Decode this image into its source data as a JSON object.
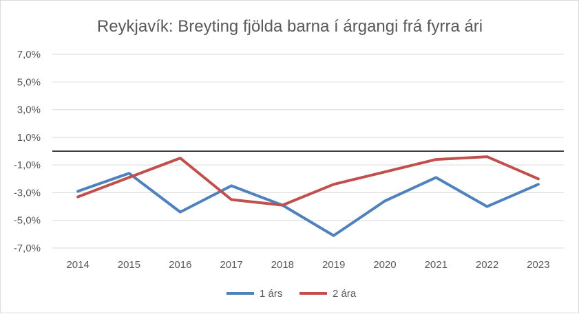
{
  "chart_data": {
    "type": "line",
    "title": "Reykjavík: Breyting fjölda barna í árgangi frá fyrra ári",
    "xlabel": "",
    "ylabel": "",
    "categories": [
      "2014",
      "2015",
      "2016",
      "2017",
      "2018",
      "2019",
      "2020",
      "2021",
      "2022",
      "2023"
    ],
    "y_ticks": [
      7.0,
      5.0,
      3.0,
      1.0,
      -1.0,
      -3.0,
      -5.0,
      -7.0
    ],
    "y_tick_labels": [
      "7,0%",
      "5,0%",
      "3,0%",
      "1,0%",
      "-1,0%",
      "-3,0%",
      "-5,0%",
      "-7,0%"
    ],
    "ylim": [
      -7.0,
      7.0
    ],
    "grid": true,
    "zero_line": true,
    "legend_position": "bottom",
    "series": [
      {
        "name": "1 árs",
        "color": "#4f81bd",
        "values": [
          -2.9,
          -1.6,
          -4.4,
          -2.5,
          -3.9,
          -6.1,
          -3.6,
          -1.9,
          -4.0,
          -2.4
        ]
      },
      {
        "name": "2 ára",
        "color": "#c0504d",
        "values": [
          -3.3,
          -1.9,
          -0.5,
          -3.5,
          -3.9,
          -2.4,
          -1.5,
          -0.6,
          -0.4,
          -2.0
        ]
      }
    ]
  }
}
